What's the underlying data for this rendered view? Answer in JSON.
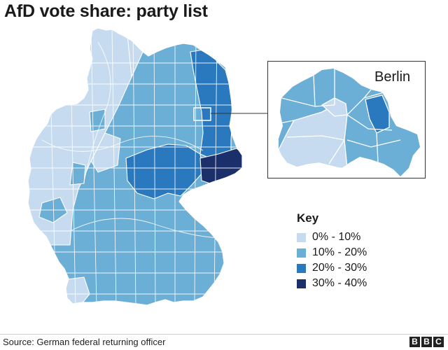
{
  "title": "AfD vote share: party list",
  "inset": {
    "label": "Berlin"
  },
  "legend": {
    "title": "Key",
    "items": [
      {
        "label": "0% - 10%",
        "color": "#c6dbef"
      },
      {
        "label": "10% - 20%",
        "color": "#6baed6"
      },
      {
        "label": "20% - 30%",
        "color": "#2a78bd"
      },
      {
        "label": "30% - 40%",
        "color": "#1b2f6b"
      }
    ]
  },
  "source": "Source: German federal returning officer",
  "logo": [
    "B",
    "B",
    "C"
  ]
}
